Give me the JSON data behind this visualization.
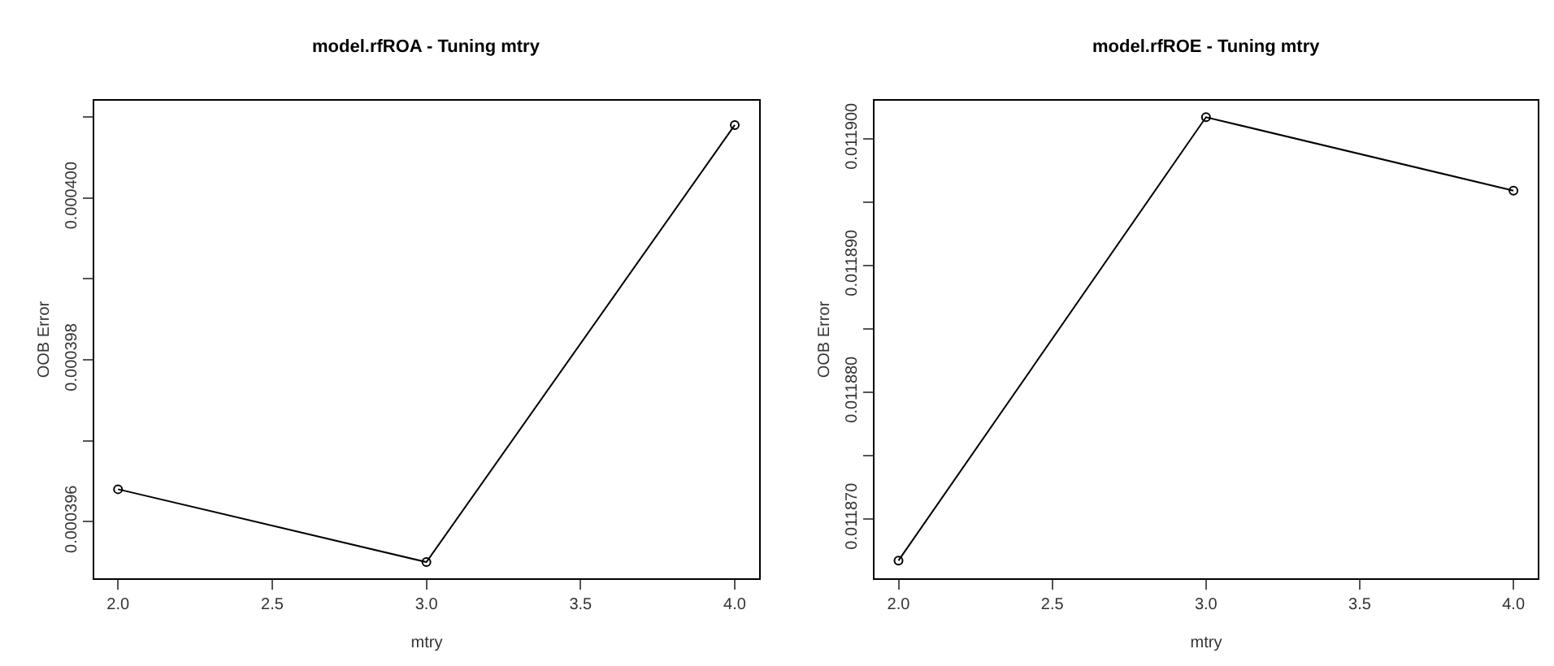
{
  "chart_data": [
    {
      "type": "line",
      "title": "model.rfROA - Tuning mtry",
      "xlabel": "mtry",
      "ylabel": "OOB Error",
      "x": [
        2,
        3,
        4
      ],
      "series": [
        {
          "color": "#000000",
          "values": [
            0.0003964,
            0.0003955,
            0.0004009
          ]
        }
      ],
      "marker": "circle",
      "line_style": "solid",
      "xlim": [
        1.923,
        4.079
      ],
      "xticks": [
        {
          "value": 2,
          "label": "2.0"
        },
        {
          "value": 2.5,
          "label": "2.5"
        },
        {
          "value": 3,
          "label": "3.0"
        },
        {
          "value": 3.5,
          "label": "3.5"
        },
        {
          "value": 4,
          "label": "4.0"
        }
      ],
      "ylim": [
        0.0003953,
        0.0004012
      ],
      "yticks": [
        0.000396,
        {
          "value": 0.000397,
          "label": null
        },
        0.000398,
        {
          "value": 0.000399,
          "label": null
        },
        {
          "value": 0.0004,
          "label": "0.000400"
        },
        {
          "value": 0.000401,
          "label": null
        }
      ]
    },
    {
      "type": "line",
      "title": "model.rfROE - Tuning mtry",
      "xlabel": "mtry",
      "ylabel": "OOB Error",
      "x": [
        2,
        3,
        4
      ],
      "series": [
        {
          "color": "#000000",
          "values": [
            0.0118667,
            0.0119017,
            0.0118959
          ]
        }
      ],
      "marker": "circle",
      "line_style": "solid",
      "xlim": [
        1.922,
        4.079
      ],
      "xticks": [
        {
          "value": 2,
          "label": "2.0"
        },
        {
          "value": 2.5,
          "label": "2.5"
        },
        {
          "value": 3,
          "label": "3.0"
        },
        {
          "value": 3.5,
          "label": "3.5"
        },
        {
          "value": 4,
          "label": "4.0"
        }
      ],
      "ylim": [
        0.0118653,
        0.011903
      ],
      "yticks": [
        {
          "value": 0.01187,
          "label": "0.011870"
        },
        {
          "value": 0.011875,
          "label": null
        },
        {
          "value": 0.01188,
          "label": "0.011880"
        },
        {
          "value": 0.011885,
          "label": null
        },
        {
          "value": 0.01189,
          "label": "0.011890"
        },
        {
          "value": 0.011895,
          "label": null
        },
        {
          "value": 0.0119,
          "label": "0.011900"
        }
      ]
    }
  ]
}
